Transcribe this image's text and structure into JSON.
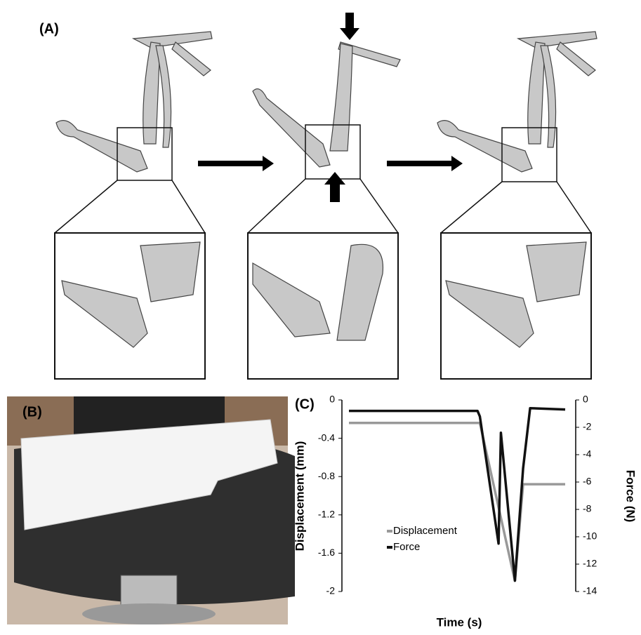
{
  "panels": {
    "a_label": "(A)",
    "b_label": "(B)"
  },
  "chart_data": {
    "type": "line",
    "label": "(C)",
    "x_label": "Time (s)",
    "y_label": "Displacement (mm)",
    "y2_label": "Force (N)",
    "x": [
      3,
      58,
      59,
      67,
      68,
      74,
      77.5,
      80.5,
      95.5
    ],
    "xlim": [
      0,
      100
    ],
    "ylim": [
      -2,
      0
    ],
    "yticks": [
      0,
      -0.4,
      -0.8,
      -1.2,
      -1.6,
      -2
    ],
    "y2lim": [
      -14,
      0
    ],
    "y2ticks": [
      0,
      -2,
      -4,
      -6,
      -8,
      -10,
      -12,
      -14
    ],
    "series": [
      {
        "name": "Displacement",
        "color": "#999999",
        "values": [
          -0.24,
          -0.24,
          -0.24,
          -1.12,
          -1.23,
          -1.89,
          -0.88,
          -0.88,
          -0.88
        ]
      },
      {
        "name": "Force",
        "color": "#111111",
        "axis": "y2",
        "values": [
          -0.8,
          -0.8,
          -1.2,
          -10.5,
          -2.4,
          -13.2,
          -5,
          -0.6,
          -0.7
        ]
      }
    ]
  }
}
